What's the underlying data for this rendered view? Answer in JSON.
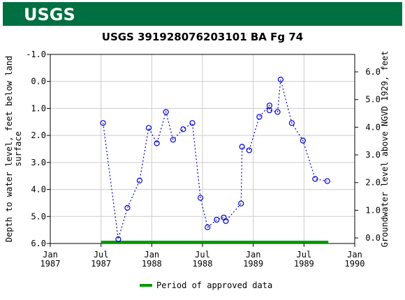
{
  "header": {
    "logo": "USGS"
  },
  "chart_data": {
    "type": "line",
    "title": "USGS 391928076203101 BA Fg  74",
    "ylabel": [
      "Depth to water level, feet below land",
      "surface"
    ],
    "y2label": "Groundwater level above NGVD 1929, feet",
    "x": [
      1987.52,
      1987.67,
      1987.76,
      1987.88,
      1987.97,
      1988.05,
      1988.14,
      1988.21,
      1988.31,
      1988.4,
      1988.48,
      1988.55,
      1988.64,
      1988.71,
      1988.73,
      1988.88,
      1988.89,
      1988.96,
      1989.06,
      1989.16,
      1989.16,
      1989.24,
      1989.27,
      1989.38,
      1989.49,
      1989.61,
      1989.73
    ],
    "values": [
      1.54,
      5.84,
      4.68,
      3.67,
      1.72,
      2.29,
      1.13,
      2.16,
      1.77,
      1.54,
      4.31,
      5.4,
      5.12,
      5.04,
      5.17,
      4.52,
      2.42,
      2.55,
      1.31,
      0.89,
      1.07,
      1.13,
      -0.07,
      1.54,
      2.19,
      3.61,
      3.69
    ],
    "color": "#0000cc",
    "xlim": [
      1987,
      1990
    ],
    "xticks": [
      {
        "value": 1987,
        "label": "Jan 1987"
      },
      {
        "value": 1987.5,
        "label": "Jul 1987"
      },
      {
        "value": 1988,
        "label": "Jan 1988"
      },
      {
        "value": 1988.5,
        "label": "Jul 1988"
      },
      {
        "value": 1989,
        "label": "Jan 1989"
      },
      {
        "value": 1989.5,
        "label": "Jul 1989"
      },
      {
        "value": 1990,
        "label": "Jan 1990"
      }
    ],
    "ylim": [
      -1,
      6
    ],
    "y_inverted": true,
    "yticks": [
      {
        "value": -1,
        "label": "-1.0"
      },
      {
        "value": 0,
        "label": "0.0"
      },
      {
        "value": 1,
        "label": "1.0"
      },
      {
        "value": 2,
        "label": "2.0"
      },
      {
        "value": 3,
        "label": "3.0"
      },
      {
        "value": 4,
        "label": "4.0"
      },
      {
        "value": 5,
        "label": "5.0"
      },
      {
        "value": 6,
        "label": "6.0"
      }
    ],
    "y2lim": [
      -0.2,
      6.63
    ],
    "y2ticks": [
      {
        "value": 0,
        "label": "0.0"
      },
      {
        "value": 1,
        "label": "1.0"
      },
      {
        "value": 2,
        "label": "2.0"
      },
      {
        "value": 3,
        "label": "3.0"
      },
      {
        "value": 4,
        "label": "4.0"
      },
      {
        "value": 5,
        "label": "5.0"
      },
      {
        "value": 6,
        "label": "6.0"
      }
    ],
    "grid": true,
    "approved_period": {
      "name": "Period of approved data",
      "color": "#009900",
      "x": [
        1987.5,
        1989.74
      ]
    }
  }
}
